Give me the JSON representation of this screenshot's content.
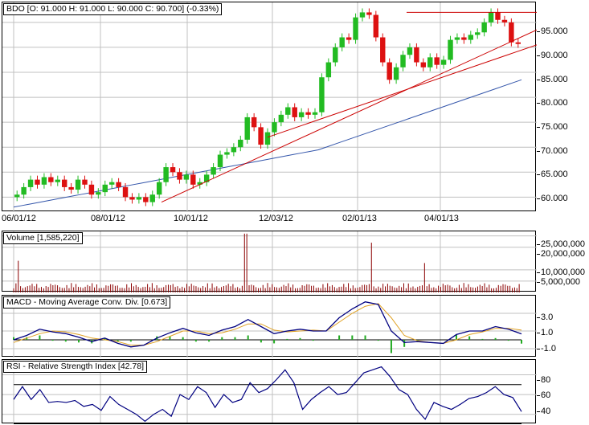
{
  "chart_data": [
    {
      "type": "candlestick",
      "title": "BDO [O: 91.000  H: 91.000  L: 90.000  C: 90.700] (-0.33%)",
      "symbol": "BDO",
      "ohlc_last": {
        "open": 91.0,
        "high": 91.0,
        "low": 90.0,
        "close": 90.7,
        "change_pct": -0.33
      },
      "x_tick_labels": [
        "06/01/12",
        "08/01/12",
        "10/01/12",
        "12/03/12",
        "02/01/13",
        "04/01/13"
      ],
      "y_tick_labels": [
        "95.000",
        "90.000",
        "85.000",
        "80.000",
        "75.000",
        "70.000",
        "65.000",
        "60.000"
      ],
      "ylim": [
        57,
        99
      ],
      "close_series_approx": [
        60.5,
        62.0,
        63.5,
        62.5,
        64.0,
        63.0,
        63.5,
        62.0,
        61.5,
        63.5,
        62.5,
        60.5,
        61.0,
        62.5,
        63.0,
        62.0,
        60.0,
        59.5,
        60.0,
        59.0,
        60.5,
        63.0,
        66.0,
        65.0,
        63.5,
        64.5,
        62.5,
        63.0,
        64.5,
        66.0,
        68.5,
        69.0,
        70.0,
        71.5,
        76.0,
        74.0,
        70.5,
        73.0,
        75.0,
        76.5,
        78.0,
        76.0,
        77.0,
        76.5,
        77.0,
        84.0,
        87.0,
        90.0,
        92.0,
        91.5,
        96.0,
        97.0,
        96.5,
        92.0,
        87.0,
        83.5,
        86.0,
        88.5,
        90.0,
        87.0,
        86.0,
        88.0,
        86.5,
        87.5,
        91.5,
        92.0,
        91.5,
        92.5,
        93.0,
        95.0,
        97.0,
        95.5,
        95.0,
        91.0,
        90.7
      ],
      "moving_average_approx": {
        "start": 58.0,
        "end": 83.5,
        "color": "#3355aa"
      },
      "trendlines": [
        {
          "type": "horizontal",
          "y": 97.0,
          "from_x_pct": 0.76,
          "color": "#cc0000"
        },
        {
          "type": "rising",
          "from": [
            0.3,
            59.0
          ],
          "to": [
            1.08,
            95.5
          ],
          "color": "#cc0000"
        },
        {
          "type": "rising",
          "from": [
            0.5,
            72.0
          ],
          "to": [
            1.08,
            91.0
          ],
          "color": "#cc0000"
        }
      ],
      "up_color": "#22bb22",
      "down_color": "#dd1111"
    },
    {
      "type": "bar",
      "title": "Volume [1,585,220]",
      "last_value": 1585220,
      "y_tick_labels": [
        "25,000,000",
        "20,000,000",
        "10,000,000",
        "5,000,000"
      ],
      "ylim": [
        0,
        27000000
      ],
      "spikes_approx": [
        {
          "x_pct": 0.03,
          "value": 14000000
        },
        {
          "x_pct": 0.455,
          "value": 26000000
        },
        {
          "x_pct": 0.69,
          "value": 22000000
        },
        {
          "x_pct": 0.79,
          "value": 13000000
        }
      ],
      "typical_value": 3000000,
      "color": "#8b0000"
    },
    {
      "type": "line",
      "title": "MACD - Moving Average Conv. Div. [0.673]",
      "last_value": 0.673,
      "y_tick_labels": [
        "3.0",
        "1.0",
        "-1.0"
      ],
      "ylim": [
        -2.0,
        5.0
      ],
      "series": [
        {
          "name": "MACD",
          "color": "#000080",
          "values": [
            0.0,
            0.5,
            1.2,
            0.9,
            0.7,
            0.3,
            -0.2,
            0.2,
            -0.4,
            -0.8,
            -0.6,
            0.2,
            0.8,
            1.3,
            0.8,
            0.5,
            1.1,
            1.5,
            2.3,
            1.5,
            0.7,
            1.0,
            1.2,
            1.0,
            1.0,
            2.5,
            3.5,
            4.3,
            4.0,
            1.0,
            -0.3,
            -0.2,
            -0.3,
            -0.4,
            0.6,
            1.0,
            1.0,
            1.5,
            1.2,
            0.673
          ]
        },
        {
          "name": "Signal",
          "color": "#e0a020",
          "values": [
            -0.3,
            0.2,
            0.7,
            1.0,
            0.9,
            0.6,
            0.2,
            0.0,
            -0.2,
            -0.6,
            -0.6,
            -0.2,
            0.4,
            1.0,
            1.0,
            0.7,
            0.8,
            1.2,
            1.8,
            1.8,
            1.1,
            0.9,
            1.0,
            1.1,
            1.0,
            2.0,
            3.0,
            3.8,
            4.1,
            2.5,
            0.5,
            -0.1,
            -0.3,
            -0.4,
            0.0,
            0.6,
            0.9,
            1.3,
            1.3,
            1.1
          ]
        }
      ],
      "histogram_color": "#22aa22"
    },
    {
      "type": "line",
      "title": "RSI - Relative Strength Index [42.78]",
      "last_value": 42.78,
      "y_tick_labels": [
        "80",
        "60",
        "40"
      ],
      "ylim": [
        30,
        95
      ],
      "reference_line": 70,
      "series": [
        {
          "name": "RSI",
          "color": "#000080",
          "values": [
            55,
            68,
            55,
            65,
            52,
            53,
            52,
            54,
            48,
            50,
            44,
            58,
            50,
            45,
            40,
            33,
            40,
            45,
            38,
            60,
            55,
            68,
            62,
            47,
            60,
            52,
            55,
            72,
            62,
            66,
            75,
            85,
            72,
            45,
            55,
            62,
            68,
            60,
            62,
            72,
            82,
            85,
            88,
            78,
            65,
            60,
            45,
            35,
            52,
            48,
            45,
            50,
            56,
            58,
            62,
            68,
            60,
            57,
            42.78
          ]
        }
      ]
    }
  ],
  "price_panel": {
    "legend": "BDO [O: 91.000  H: 91.000  L: 90.000  C: 90.700] (-0.33%)",
    "y_labels": [
      "95.000",
      "90.000",
      "85.000",
      "80.000",
      "75.000",
      "70.000",
      "65.000",
      "60.000"
    ],
    "x_labels": [
      "06/01/12",
      "08/01/12",
      "10/01/12",
      "12/03/12",
      "02/01/13",
      "04/01/13"
    ]
  },
  "volume_panel": {
    "legend": "Volume [1,585,220]",
    "y_labels": [
      "25,000,000",
      "20,000,000",
      "10,000,000",
      "5,000,000"
    ]
  },
  "macd_panel": {
    "legend": "MACD - Moving Average Conv. Div. [0.673]",
    "y_labels": [
      "3.0",
      "1.0",
      "-1.0"
    ]
  },
  "rsi_panel": {
    "legend": "RSI - Relative Strength Index [42.78]",
    "y_labels": [
      "80",
      "60",
      "40"
    ]
  }
}
